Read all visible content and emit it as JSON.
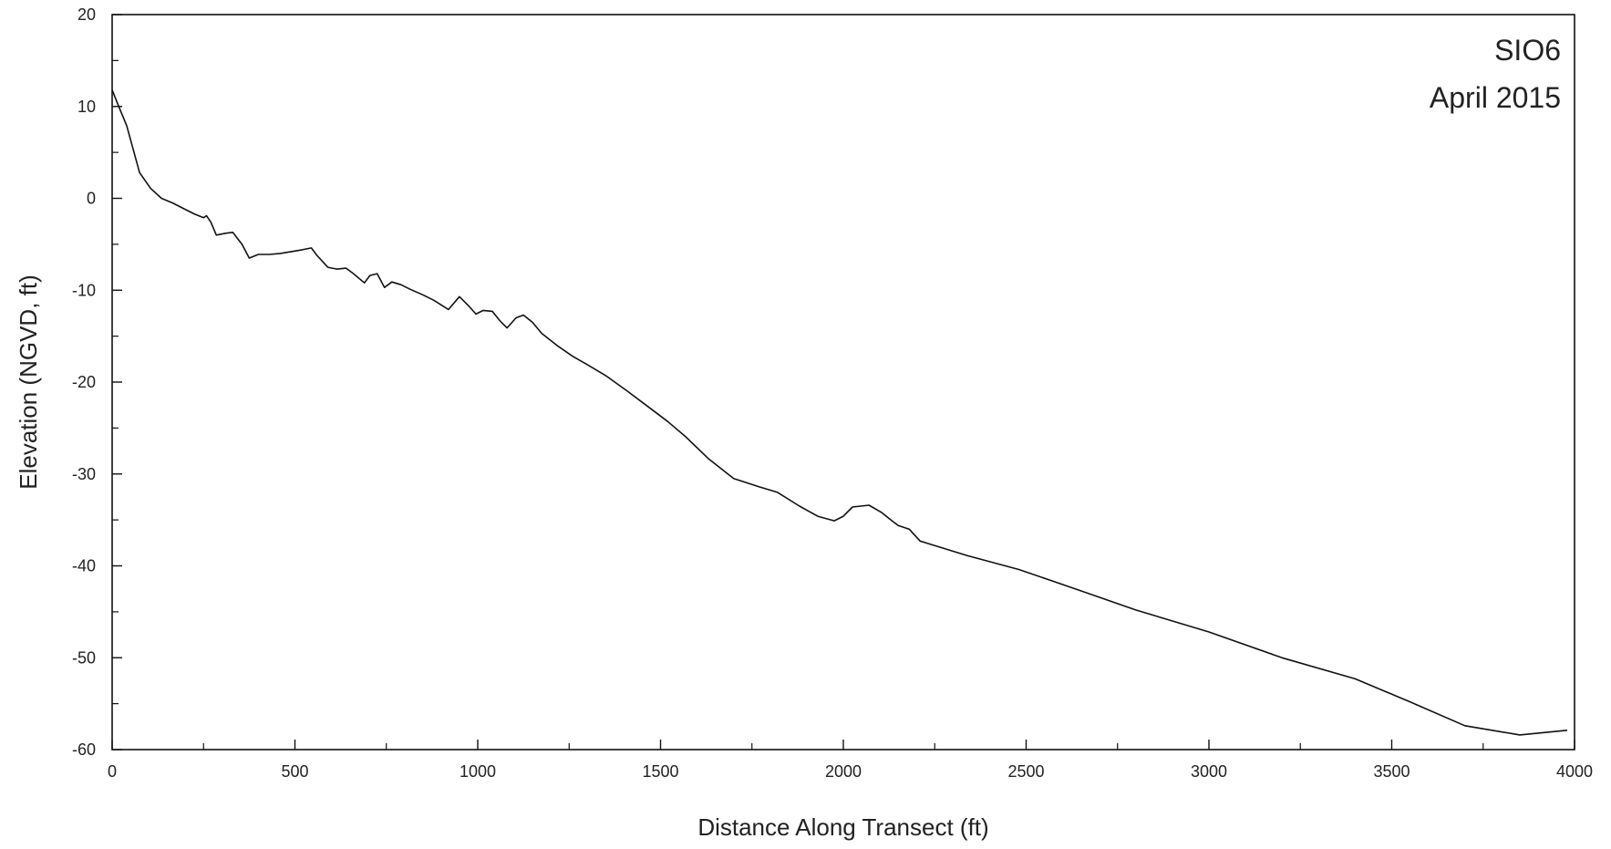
{
  "chart_data": {
    "type": "line",
    "title": "SIO6",
    "subtitle": "April 2015",
    "xlabel": "Distance Along Transect (ft)",
    "ylabel": "Elevation (NGVD, ft)",
    "xlim": [
      0,
      4000
    ],
    "ylim": [
      -60,
      20
    ],
    "x_ticks": [
      0,
      500,
      1000,
      1500,
      2000,
      2500,
      3000,
      3500,
      4000
    ],
    "x_minor_ticks": [
      250,
      750,
      1250,
      1750,
      2250,
      2750,
      3250,
      3750
    ],
    "y_ticks": [
      -60,
      -50,
      -40,
      -30,
      -20,
      -10,
      0,
      10,
      20
    ],
    "y_minor_ticks": [
      -55,
      -45,
      -35,
      -25,
      -15,
      -5,
      5,
      15
    ],
    "grid": false,
    "legend": "none",
    "line_color": "#111111",
    "series": [
      {
        "x": [
          0,
          15,
          40,
          75,
          105,
          135,
          165,
          195,
          225,
          250,
          258,
          270,
          285,
          310,
          330,
          355,
          375,
          400,
          430,
          460,
          490,
          520,
          545,
          560,
          590,
          615,
          640,
          660,
          690,
          705,
          725,
          745,
          765,
          790,
          815,
          850,
          880,
          920,
          950,
          975,
          995,
          1015,
          1040,
          1060,
          1080,
          1105,
          1125,
          1150,
          1175,
          1220,
          1260,
          1300,
          1350,
          1410,
          1460,
          1520,
          1570,
          1630,
          1700,
          1770,
          1820,
          1880,
          1930,
          1975,
          2000,
          2025,
          2070,
          2105,
          2130,
          2150,
          2180,
          2210,
          2340,
          2480,
          2620,
          2800,
          3000,
          3200,
          3400,
          3550,
          3700,
          3850,
          3980
        ],
        "y": [
          11.8,
          10.3,
          7.9,
          2.8,
          1.1,
          0.0,
          -0.5,
          -1.1,
          -1.7,
          -2.1,
          -1.9,
          -2.6,
          -4.0,
          -3.8,
          -3.7,
          -5.0,
          -6.5,
          -6.1,
          -6.1,
          -6.0,
          -5.8,
          -5.6,
          -5.4,
          -6.2,
          -7.5,
          -7.7,
          -7.6,
          -8.2,
          -9.2,
          -8.4,
          -8.2,
          -9.7,
          -9.1,
          -9.4,
          -9.9,
          -10.5,
          -11.1,
          -12.1,
          -10.7,
          -11.7,
          -12.6,
          -12.2,
          -12.3,
          -13.3,
          -14.1,
          -13.0,
          -12.7,
          -13.5,
          -14.7,
          -16.1,
          -17.2,
          -18.1,
          -19.3,
          -21.0,
          -22.5,
          -24.3,
          -26.0,
          -28.3,
          -30.5,
          -31.4,
          -32.0,
          -33.5,
          -34.6,
          -35.1,
          -34.6,
          -33.6,
          -33.4,
          -34.2,
          -35.0,
          -35.6,
          -36.0,
          -37.3,
          -38.9,
          -40.4,
          -42.3,
          -44.8,
          -47.2,
          -50.0,
          -52.3,
          -54.8,
          -57.4,
          -58.4,
          -57.9
        ]
      }
    ]
  }
}
